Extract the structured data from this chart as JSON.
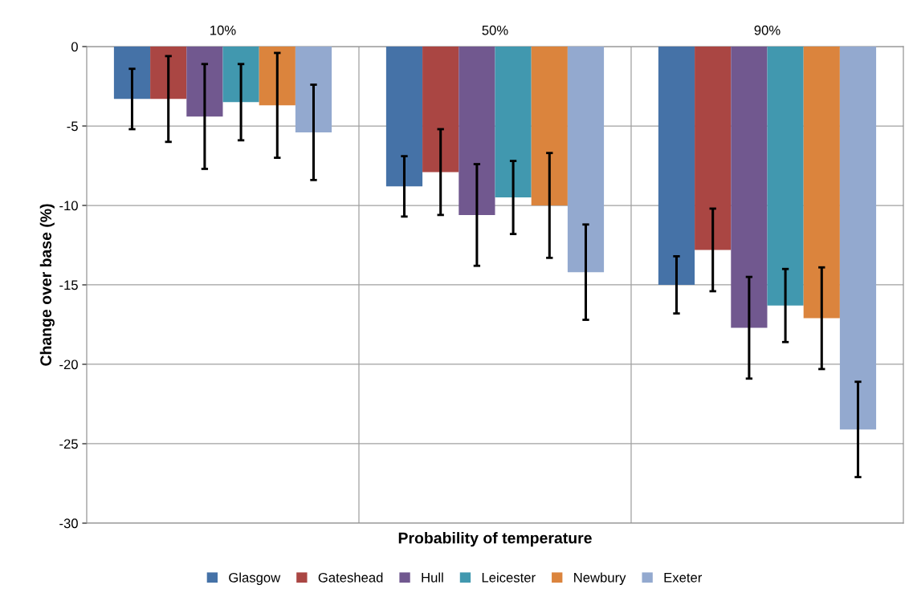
{
  "chart_data": {
    "type": "bar",
    "xlabel": "Probability of temperature",
    "ylabel": "Change over base (%)",
    "categories": [
      "10%",
      "50%",
      "90%"
    ],
    "ylim": [
      -30,
      0
    ],
    "yticks": [
      -30,
      -25,
      -20,
      -15,
      -10,
      -5,
      0
    ],
    "grid": true,
    "legend": "bottom",
    "series": [
      {
        "name": "Glasgow",
        "color": "#4572a7",
        "values": [
          -3.3,
          -8.8,
          -15.0
        ],
        "errors": [
          1.9,
          1.9,
          1.8
        ]
      },
      {
        "name": "Gateshead",
        "color": "#aa4643",
        "values": [
          -3.3,
          -7.9,
          -12.8
        ],
        "errors": [
          2.7,
          2.7,
          2.6
        ]
      },
      {
        "name": "Hull",
        "color": "#71588f",
        "values": [
          -4.4,
          -10.6,
          -17.7
        ],
        "errors": [
          3.3,
          3.2,
          3.2
        ]
      },
      {
        "name": "Leicester",
        "color": "#4198af",
        "values": [
          -3.5,
          -9.5,
          -16.3
        ],
        "errors": [
          2.4,
          2.3,
          2.3
        ]
      },
      {
        "name": "Newbury",
        "color": "#db843d",
        "values": [
          -3.7,
          -10.0,
          -17.1
        ],
        "errors": [
          3.3,
          3.3,
          3.2
        ]
      },
      {
        "name": "Exeter",
        "color": "#93a9cf",
        "values": [
          -5.4,
          -14.2,
          -24.1
        ],
        "errors": [
          3.0,
          3.0,
          3.0
        ]
      }
    ]
  }
}
